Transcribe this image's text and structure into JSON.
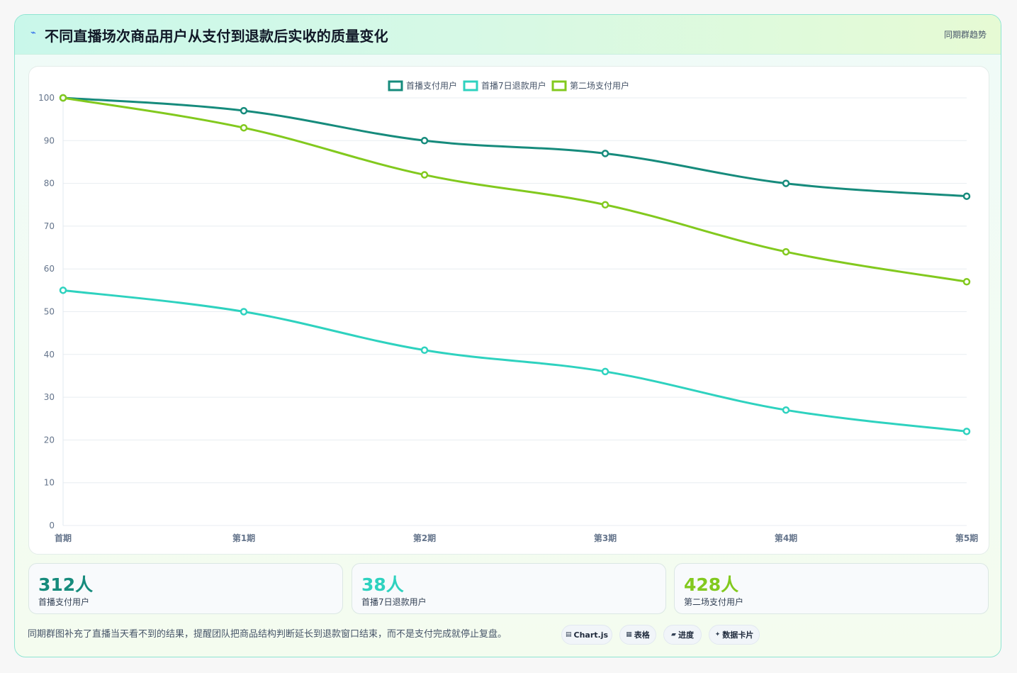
{
  "header": {
    "title": "不同直播场次商品用户从支付到退款后实收的质量变化",
    "tag": "同期群趋势",
    "icon": "spark-icon"
  },
  "colors": {
    "series1": "#168b7c",
    "series2": "#2ed2bf",
    "series3": "#82c91e",
    "grid": "#e8edf1",
    "axis_text": "#64748b"
  },
  "chart_data": {
    "type": "line",
    "categories": [
      "首期",
      "第1期",
      "第2期",
      "第3期",
      "第4期",
      "第5期"
    ],
    "series": [
      {
        "name": "首播支付用户",
        "values": [
          100,
          97,
          90,
          87,
          80,
          77
        ]
      },
      {
        "name": "首播7日退款用户",
        "values": [
          55,
          50,
          41,
          36,
          27,
          22
        ]
      },
      {
        "name": "第二场支付用户",
        "values": [
          100,
          93,
          82,
          75,
          64,
          57
        ]
      }
    ],
    "ylim": [
      0,
      100
    ],
    "yticks": [
      0,
      10,
      20,
      30,
      40,
      50,
      60,
      70,
      80,
      90,
      100
    ],
    "legend": "top-center",
    "grid": true
  },
  "stats": [
    {
      "value": "312人",
      "label": "首播支付用户",
      "color": "#168b7c"
    },
    {
      "value": "38人",
      "label": "首播7日退款用户",
      "color": "#2ed2bf"
    },
    {
      "value": "428人",
      "label": "第二场支付用户",
      "color": "#82c91e"
    }
  ],
  "note": "同期群图补充了直播当天看不到的结果，提醒团队把商品结构判断延长到退款窗口结束，而不是支付完成就停止复盘。",
  "chips": [
    {
      "label": "Chart.js",
      "icon": "chart-icon"
    },
    {
      "label": "表格",
      "icon": "table-icon"
    },
    {
      "label": "进度",
      "icon": "progress-icon"
    },
    {
      "label": "数据卡片",
      "icon": "card-icon"
    }
  ]
}
